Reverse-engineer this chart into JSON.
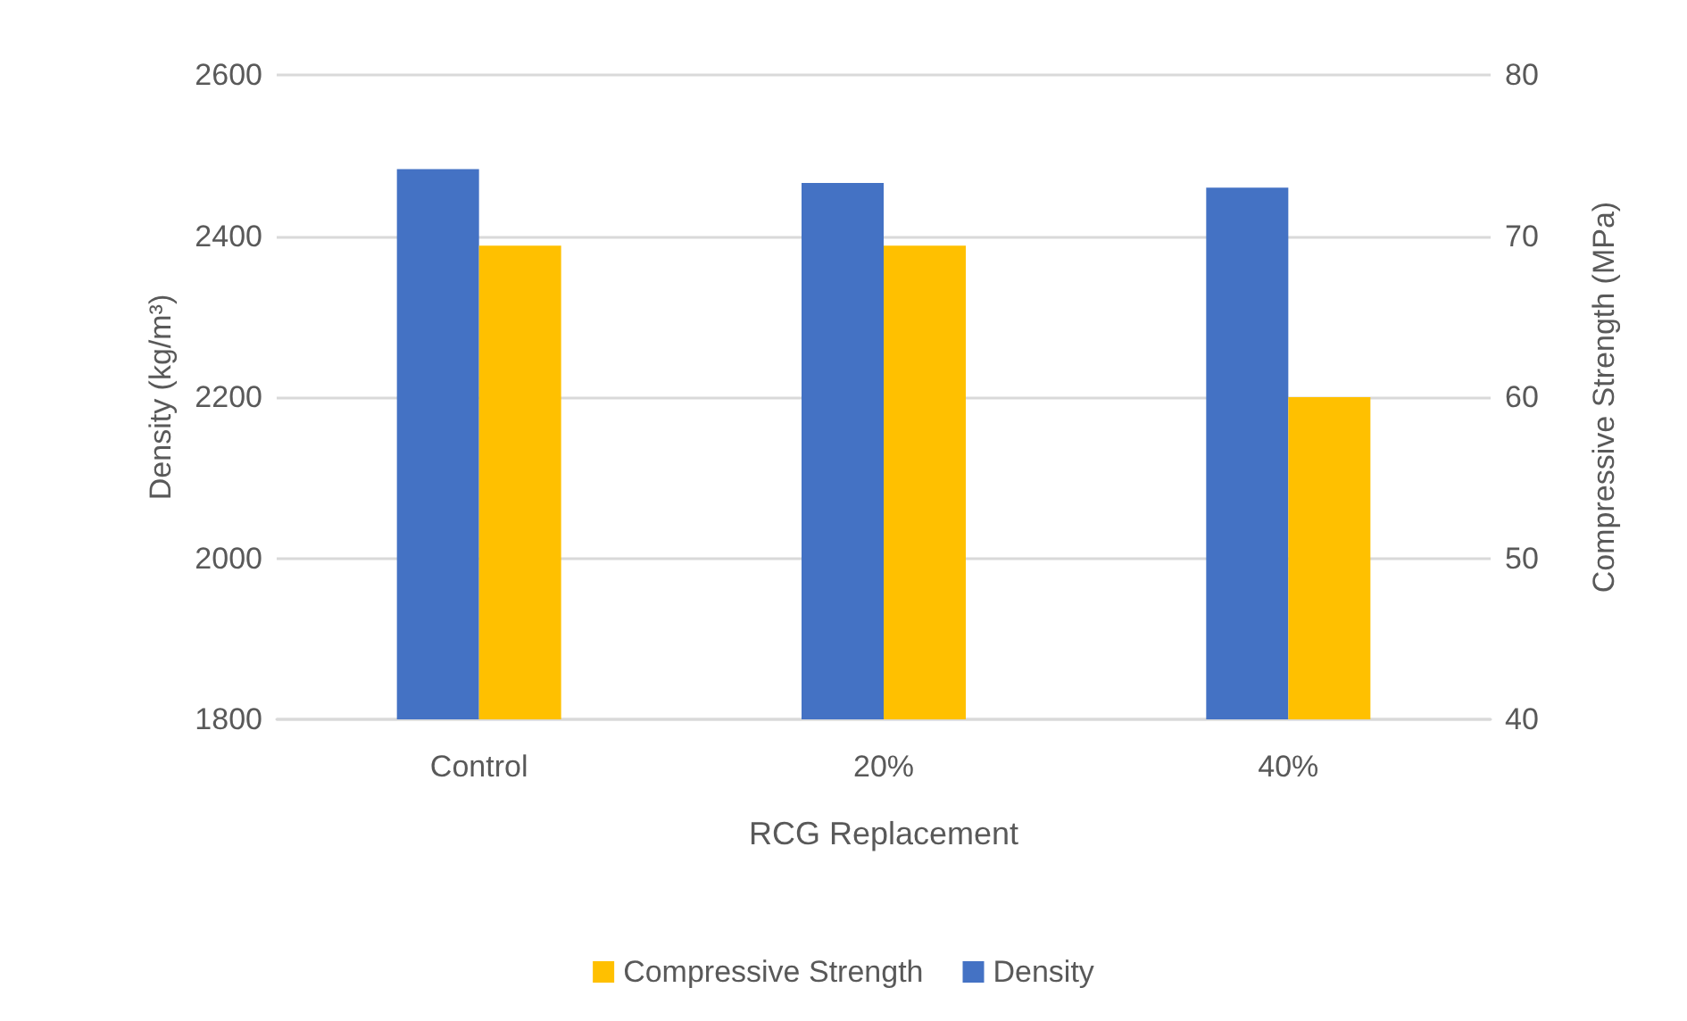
{
  "chart_data": {
    "type": "bar",
    "xlabel": "RCG Replacement",
    "ylabel": "Density (kg/m³)",
    "y2label": "Compressive Strength (MPa)",
    "categories": [
      "Control",
      "20%",
      "40%"
    ],
    "series": [
      {
        "name": "Density",
        "color": "#4472c4",
        "values": [
          2483,
          2466,
          2460
        ]
      },
      {
        "name": "Compressive Strength",
        "color": "#ffc000",
        "axis": "y2",
        "values": [
          69.4,
          69.4,
          60.0
        ]
      }
    ],
    "ylim": [
      1800,
      2600
    ],
    "yticks": [
      1800,
      2000,
      2200,
      2400,
      2600
    ],
    "y2lim": [
      40,
      80
    ],
    "y2ticks": [
      40,
      50,
      60,
      70,
      80
    ],
    "grid": "y",
    "legend": "bottom"
  }
}
